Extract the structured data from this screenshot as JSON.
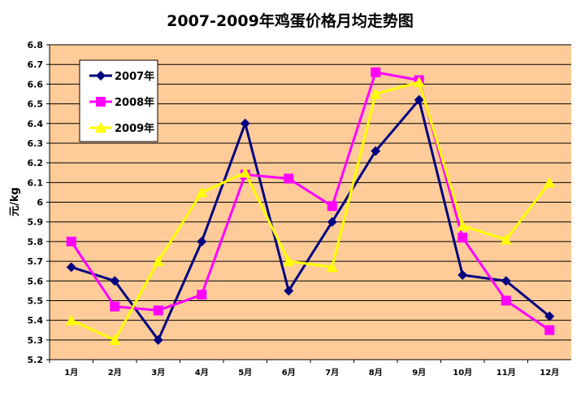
{
  "chart_data": {
    "type": "line",
    "title": "2007-2009年鸡蛋价格月均走势图",
    "xlabel": "",
    "ylabel": "元/kg",
    "ylim": [
      5.2,
      6.8
    ],
    "ytick_step": 0.1,
    "yticks": [
      "5.2",
      "5.3",
      "5.4",
      "5.5",
      "5.6",
      "5.7",
      "5.8",
      "5.9",
      "6",
      "6.1",
      "6.2",
      "6.3",
      "6.4",
      "6.5",
      "6.6",
      "6.7",
      "6.8"
    ],
    "categories": [
      "1月",
      "2月",
      "3月",
      "4月",
      "5月",
      "6月",
      "7月",
      "8月",
      "9月",
      "10月",
      "11月",
      "12月"
    ],
    "grid": true,
    "legend_position": "top-left",
    "plot_background": "#FFCC99",
    "series": [
      {
        "name": "2007年",
        "color": "#000080",
        "marker": "diamond",
        "values": [
          5.67,
          5.6,
          5.3,
          5.8,
          6.4,
          5.55,
          5.9,
          6.26,
          6.52,
          5.63,
          5.6,
          5.42
        ]
      },
      {
        "name": "2008年",
        "color": "#FF00FF",
        "marker": "square",
        "values": [
          5.8,
          5.47,
          5.45,
          5.53,
          6.14,
          6.12,
          5.98,
          6.66,
          6.62,
          5.82,
          5.5,
          5.35
        ]
      },
      {
        "name": "2009年",
        "color": "#FFFF00",
        "marker": "triangle",
        "values": [
          5.4,
          5.3,
          5.7,
          6.05,
          6.15,
          5.7,
          5.67,
          6.55,
          6.61,
          5.88,
          5.81,
          6.1
        ]
      }
    ]
  }
}
